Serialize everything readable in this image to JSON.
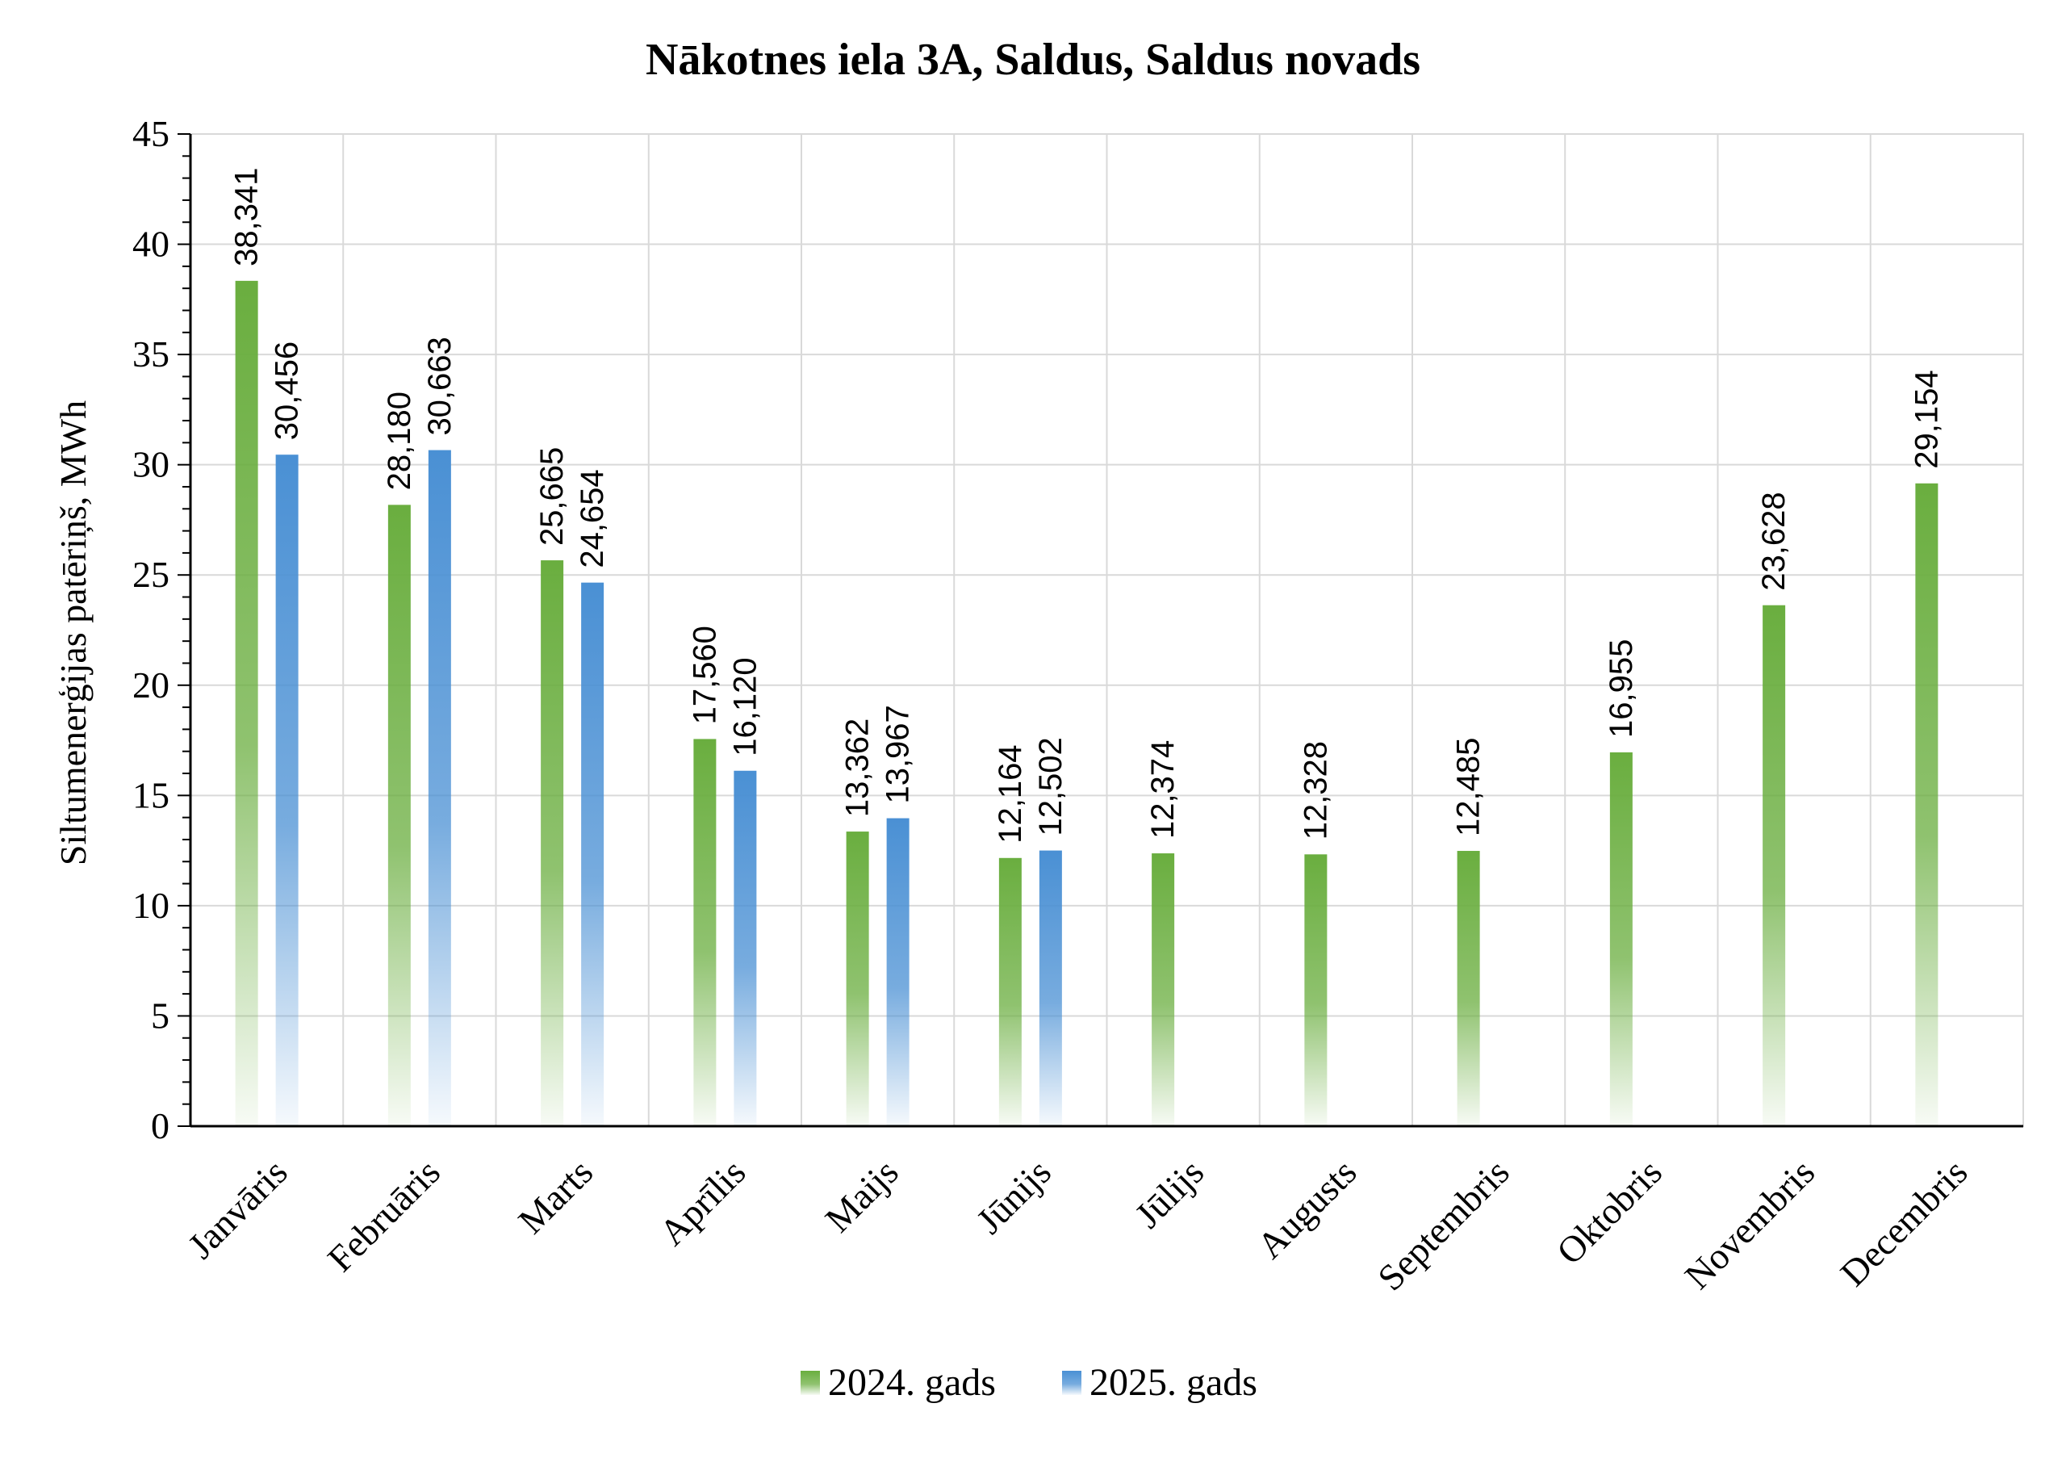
{
  "chart_data": {
    "type": "bar",
    "title": "Nākotnes iela 3A, Saldus, Saldus novads",
    "xlabel": "",
    "ylabel": "Siltumenerģijas patēriņš, MWh",
    "ylim": [
      0,
      45
    ],
    "yticks": [
      "0",
      "5",
      "10",
      "15",
      "20",
      "25",
      "30",
      "35",
      "40",
      "45"
    ],
    "grid": true,
    "legend_position": "bottom",
    "categories": [
      "Janvāris",
      "Februāris",
      "Marts",
      "Aprīlis",
      "Maijs",
      "Jūnijs",
      "Jūlijs",
      "Augusts",
      "Septembris",
      "Oktobris",
      "Novembris",
      "Decembris"
    ],
    "series": [
      {
        "name": "2024. gads",
        "color": "#6aae3f",
        "values": [
          38.341,
          28.18,
          25.665,
          17.56,
          13.362,
          12.164,
          12.374,
          12.328,
          12.485,
          16.955,
          23.628,
          29.154
        ],
        "labels": [
          "38,341",
          "28,180",
          "25,665",
          "17,560",
          "13,362",
          "12,164",
          "12,374",
          "12,328",
          "12,485",
          "16,955",
          "23,628",
          "29,154"
        ]
      },
      {
        "name": "2025. gads",
        "color": "#4a90d4",
        "values": [
          30.456,
          30.663,
          24.654,
          16.12,
          13.967,
          12.502,
          null,
          null,
          null,
          null,
          null,
          null
        ],
        "labels": [
          "30,456",
          "30,663",
          "24,654",
          "16,120",
          "13,967",
          "12,502",
          "",
          "",
          "",
          "",
          "",
          ""
        ]
      }
    ]
  }
}
